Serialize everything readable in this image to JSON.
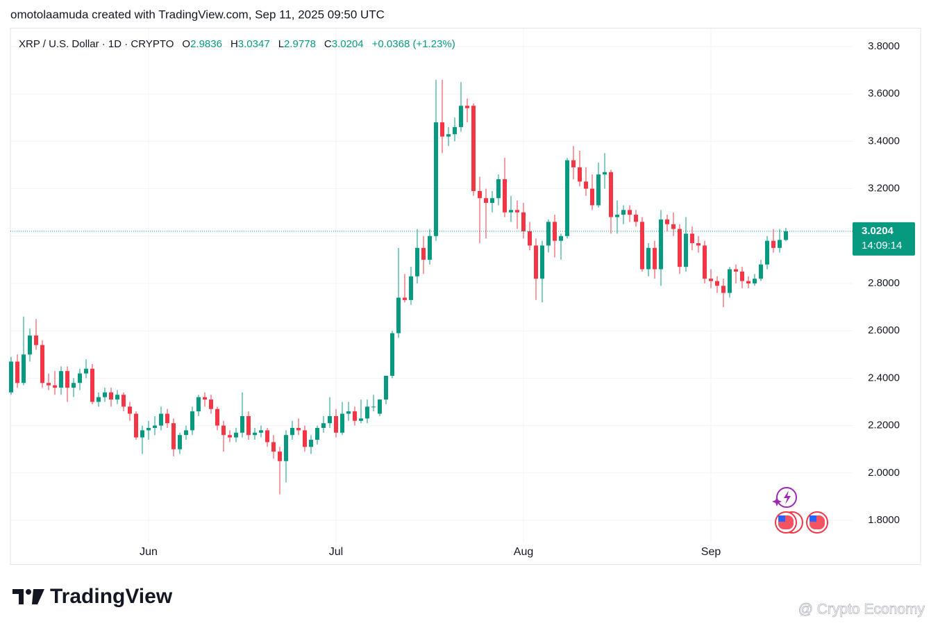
{
  "chart_data": {
    "type": "candlestick",
    "attribution": "omotolaamuda created with TradingView.com, Sep 11, 2025 09:50 UTC",
    "symbol": "XRP / U.S. Dollar · 1D · CRYPTO",
    "legend_values": [
      {
        "label": "O",
        "value": "2.9836"
      },
      {
        "label": "H",
        "value": "3.0347"
      },
      {
        "label": "L",
        "value": "2.9778"
      },
      {
        "label": "C",
        "value": "3.0204"
      }
    ],
    "change": "+0.0368 (+1.23%)",
    "last_price": 3.0204,
    "countdown": "14:09:14",
    "up_color": "#089981",
    "down_color": "#f23645",
    "brand": "TradingView",
    "watermark": "@ Crypto Economy",
    "ylim": [
      1.8,
      3.8
    ],
    "yticks": [
      {
        "value": 1.8,
        "label": "1.8000"
      },
      {
        "value": 2.0,
        "label": "2.0000"
      },
      {
        "value": 2.2,
        "label": "2.2000"
      },
      {
        "value": 2.4,
        "label": "2.4000"
      },
      {
        "value": 2.6,
        "label": "2.6000"
      },
      {
        "value": 2.8,
        "label": "2.8000"
      },
      {
        "value": 3.0,
        "label": "3.0000"
      },
      {
        "value": 3.2,
        "label": "3.2000"
      },
      {
        "value": 3.4,
        "label": "3.4000"
      },
      {
        "value": 3.6,
        "label": "3.6000"
      },
      {
        "value": 3.8,
        "label": "3.8000"
      }
    ],
    "grid": true,
    "categories": [
      null,
      null,
      null,
      null,
      null,
      null,
      null,
      null,
      null,
      null,
      null,
      null,
      null,
      null,
      null,
      null,
      null,
      null,
      null,
      null,
      null,
      null,
      "Jun",
      null,
      null,
      null,
      null,
      null,
      null,
      null,
      null,
      null,
      null,
      null,
      null,
      null,
      null,
      null,
      null,
      null,
      null,
      null,
      null,
      null,
      null,
      null,
      null,
      null,
      null,
      null,
      null,
      null,
      "Jul",
      null,
      null,
      null,
      null,
      null,
      null,
      null,
      null,
      null,
      null,
      null,
      null,
      null,
      null,
      null,
      null,
      null,
      null,
      null,
      null,
      null,
      null,
      null,
      null,
      null,
      null,
      null,
      null,
      null,
      "Aug",
      null,
      null,
      null,
      null,
      null,
      null,
      null,
      null,
      null,
      null,
      null,
      null,
      null,
      null,
      null,
      null,
      null,
      null,
      null,
      null,
      null,
      null,
      null,
      null,
      null,
      null,
      null,
      null,
      null,
      "Sep",
      null,
      null,
      null,
      null,
      null,
      null,
      null,
      null,
      null,
      null
    ],
    "ohlc": [
      [
        2.34,
        2.49,
        2.33,
        2.47
      ],
      [
        2.47,
        2.5,
        2.36,
        2.38
      ],
      [
        2.38,
        2.66,
        2.37,
        2.5
      ],
      [
        2.5,
        2.61,
        2.47,
        2.58
      ],
      [
        2.58,
        2.65,
        2.52,
        2.54
      ],
      [
        2.54,
        2.56,
        2.36,
        2.38
      ],
      [
        2.38,
        2.42,
        2.35,
        2.37
      ],
      [
        2.37,
        2.43,
        2.33,
        2.36
      ],
      [
        2.36,
        2.45,
        2.33,
        2.43
      ],
      [
        2.43,
        2.45,
        2.3,
        2.36
      ],
      [
        2.36,
        2.4,
        2.32,
        2.38
      ],
      [
        2.38,
        2.44,
        2.35,
        2.42
      ],
      [
        2.42,
        2.48,
        2.4,
        2.44
      ],
      [
        2.44,
        2.46,
        2.29,
        2.3
      ],
      [
        2.3,
        2.34,
        2.28,
        2.32
      ],
      [
        2.32,
        2.36,
        2.3,
        2.34
      ],
      [
        2.34,
        2.36,
        2.28,
        2.31
      ],
      [
        2.31,
        2.35,
        2.29,
        2.33
      ],
      [
        2.33,
        2.34,
        2.26,
        2.28
      ],
      [
        2.28,
        2.3,
        2.22,
        2.25
      ],
      [
        2.25,
        2.26,
        2.14,
        2.15
      ],
      [
        2.15,
        2.2,
        2.08,
        2.18
      ],
      [
        2.18,
        2.22,
        2.14,
        2.19
      ],
      [
        2.19,
        2.24,
        2.16,
        2.2
      ],
      [
        2.2,
        2.28,
        2.18,
        2.25
      ],
      [
        2.25,
        2.27,
        2.19,
        2.21
      ],
      [
        2.21,
        2.23,
        2.07,
        2.1
      ],
      [
        2.1,
        2.17,
        2.08,
        2.16
      ],
      [
        2.16,
        2.2,
        2.14,
        2.18
      ],
      [
        2.18,
        2.28,
        2.16,
        2.26
      ],
      [
        2.26,
        2.33,
        2.24,
        2.32
      ],
      [
        2.32,
        2.34,
        2.28,
        2.31
      ],
      [
        2.31,
        2.33,
        2.25,
        2.27
      ],
      [
        2.27,
        2.28,
        2.18,
        2.2
      ],
      [
        2.2,
        2.22,
        2.09,
        2.16
      ],
      [
        2.16,
        2.18,
        2.13,
        2.15
      ],
      [
        2.15,
        2.19,
        2.13,
        2.17
      ],
      [
        2.17,
        2.34,
        2.15,
        2.24
      ],
      [
        2.24,
        2.26,
        2.14,
        2.16
      ],
      [
        2.16,
        2.19,
        2.14,
        2.17
      ],
      [
        2.17,
        2.2,
        2.15,
        2.18
      ],
      [
        2.18,
        2.19,
        2.11,
        2.13
      ],
      [
        2.13,
        2.16,
        2.06,
        2.09
      ],
      [
        2.09,
        2.11,
        1.91,
        2.05
      ],
      [
        2.05,
        2.18,
        1.96,
        2.16
      ],
      [
        2.16,
        2.22,
        2.14,
        2.19
      ],
      [
        2.19,
        2.23,
        2.16,
        2.18
      ],
      [
        2.18,
        2.2,
        2.09,
        2.11
      ],
      [
        2.11,
        2.16,
        2.08,
        2.14
      ],
      [
        2.14,
        2.2,
        2.12,
        2.19
      ],
      [
        2.19,
        2.24,
        2.17,
        2.21
      ],
      [
        2.21,
        2.32,
        2.19,
        2.24
      ],
      [
        2.24,
        2.27,
        2.15,
        2.17
      ],
      [
        2.17,
        2.3,
        2.16,
        2.25
      ],
      [
        2.25,
        2.3,
        2.22,
        2.26
      ],
      [
        2.26,
        2.28,
        2.2,
        2.22
      ],
      [
        2.22,
        2.31,
        2.21,
        2.23
      ],
      [
        2.23,
        2.31,
        2.21,
        2.28
      ],
      [
        2.28,
        2.33,
        2.26,
        2.28
      ],
      [
        2.25,
        2.31,
        2.24,
        2.31
      ],
      [
        2.31,
        2.41,
        2.29,
        2.41
      ],
      [
        2.41,
        2.6,
        2.4,
        2.59
      ],
      [
        2.59,
        2.95,
        2.57,
        2.74
      ],
      [
        2.74,
        2.84,
        2.72,
        2.73
      ],
      [
        2.73,
        2.87,
        2.71,
        2.83
      ],
      [
        2.83,
        3.03,
        2.8,
        2.95
      ],
      [
        2.95,
        3.0,
        2.84,
        2.9
      ],
      [
        2.9,
        3.03,
        2.88,
        3.0
      ],
      [
        3.0,
        3.66,
        2.98,
        3.48
      ],
      [
        3.48,
        3.66,
        3.35,
        3.42
      ],
      [
        3.42,
        3.46,
        3.38,
        3.43
      ],
      [
        3.43,
        3.5,
        3.4,
        3.46
      ],
      [
        3.46,
        3.65,
        3.44,
        3.55
      ],
      [
        3.55,
        3.58,
        3.48,
        3.54
      ],
      [
        3.55,
        3.56,
        3.17,
        3.19
      ],
      [
        3.19,
        3.25,
        2.97,
        3.16
      ],
      [
        3.16,
        3.2,
        2.99,
        3.14
      ],
      [
        3.14,
        3.19,
        3.1,
        3.16
      ],
      [
        3.16,
        3.26,
        3.13,
        3.24
      ],
      [
        3.24,
        3.33,
        3.08,
        3.1
      ],
      [
        3.1,
        3.17,
        3.06,
        3.11
      ],
      [
        3.11,
        3.15,
        3.03,
        3.1
      ],
      [
        3.1,
        3.14,
        2.99,
        3.02
      ],
      [
        3.02,
        3.06,
        2.94,
        2.96
      ],
      [
        2.96,
        2.99,
        2.73,
        2.82
      ],
      [
        2.82,
        2.98,
        2.72,
        2.96
      ],
      [
        2.96,
        3.07,
        2.93,
        3.06
      ],
      [
        3.06,
        3.09,
        2.91,
        2.98
      ],
      [
        2.98,
        3.01,
        2.9,
        3.0
      ],
      [
        3.0,
        3.33,
        2.99,
        3.32
      ],
      [
        3.32,
        3.38,
        3.24,
        3.29
      ],
      [
        3.29,
        3.36,
        3.21,
        3.23
      ],
      [
        3.23,
        3.29,
        3.17,
        3.2
      ],
      [
        3.2,
        3.26,
        3.11,
        3.13
      ],
      [
        3.13,
        3.31,
        3.12,
        3.26
      ],
      [
        3.26,
        3.35,
        3.2,
        3.27
      ],
      [
        3.27,
        3.28,
        3.01,
        3.08
      ],
      [
        3.08,
        3.15,
        3.01,
        3.09
      ],
      [
        3.09,
        3.13,
        3.05,
        3.11
      ],
      [
        3.11,
        3.13,
        3.06,
        3.09
      ],
      [
        3.09,
        3.11,
        3.04,
        3.06
      ],
      [
        3.06,
        3.08,
        2.85,
        2.86
      ],
      [
        2.86,
        2.97,
        2.83,
        2.95
      ],
      [
        2.95,
        2.98,
        2.82,
        2.86
      ],
      [
        2.86,
        3.11,
        2.79,
        3.07
      ],
      [
        3.07,
        3.09,
        3.02,
        3.05
      ],
      [
        3.05,
        3.1,
        3.0,
        3.03
      ],
      [
        3.03,
        3.05,
        2.84,
        2.87
      ],
      [
        2.87,
        3.08,
        2.85,
        3.01
      ],
      [
        3.01,
        3.04,
        2.94,
        2.97
      ],
      [
        2.97,
        3.0,
        2.93,
        2.96
      ],
      [
        2.96,
        2.98,
        2.8,
        2.82
      ],
      [
        2.82,
        2.86,
        2.78,
        2.81
      ],
      [
        2.81,
        2.83,
        2.76,
        2.79
      ],
      [
        2.79,
        2.82,
        2.7,
        2.76
      ],
      [
        2.76,
        2.87,
        2.74,
        2.86
      ],
      [
        2.86,
        2.88,
        2.8,
        2.85
      ],
      [
        2.85,
        2.87,
        2.78,
        2.81
      ],
      [
        2.81,
        2.83,
        2.78,
        2.8
      ],
      [
        2.8,
        2.84,
        2.79,
        2.82
      ],
      [
        2.82,
        2.9,
        2.81,
        2.88
      ],
      [
        2.88,
        3.0,
        2.86,
        2.98
      ],
      [
        2.98,
        3.03,
        2.93,
        2.95
      ],
      [
        2.95,
        3.03,
        2.93,
        2.9836
      ],
      [
        2.9836,
        3.0347,
        2.9778,
        3.0204
      ]
    ]
  }
}
